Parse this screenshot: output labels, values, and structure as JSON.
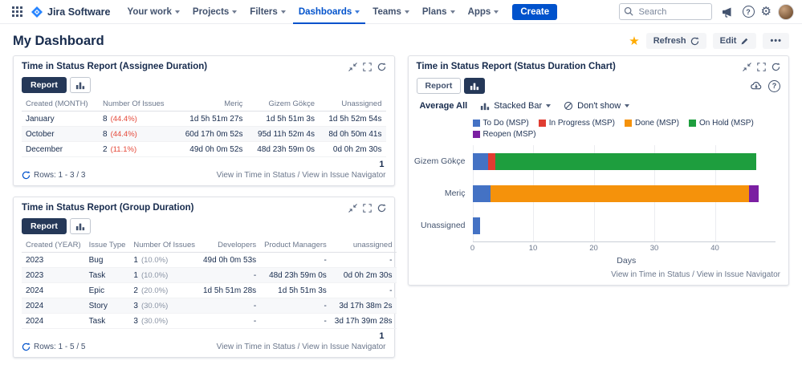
{
  "topnav": {
    "app_name": "Jira Software",
    "items": [
      "Your work",
      "Projects",
      "Filters",
      "Dashboards",
      "Teams",
      "Plans",
      "Apps"
    ],
    "active_item": "Dashboards",
    "create_label": "Create",
    "search_placeholder": "Search"
  },
  "header": {
    "title": "My Dashboard",
    "refresh_label": "Refresh",
    "edit_label": "Edit",
    "more_label": "•••"
  },
  "gadget_assignee": {
    "title": "Time in Status Report (Assignee Duration)",
    "report_label": "Report",
    "page": "1",
    "rows_info": "Rows: 1 - 3 / 3",
    "links": [
      "View in Time in Status",
      "View in Issue Navigator"
    ],
    "table": {
      "pct_color": "#E5493A",
      "columns": [
        {
          "label": "Created (MONTH)",
          "align": "left"
        },
        {
          "label": "Number Of Issues",
          "align": "left"
        },
        {
          "label": "Meriç",
          "align": "right"
        },
        {
          "label": "Gizem Gökçe",
          "align": "right"
        },
        {
          "label": "Unassigned",
          "align": "right"
        }
      ],
      "rows": [
        {
          "cells": [
            {
              "t": "January"
            },
            {
              "t": "8",
              "pct": "(44.4%)"
            },
            {
              "t": "1d 5h 51m 27s"
            },
            {
              "t": "1d 5h 51m 3s"
            },
            {
              "t": "1d 5h 52m 54s"
            }
          ]
        },
        {
          "cells": [
            {
              "t": "October"
            },
            {
              "t": "8",
              "pct": "(44.4%)"
            },
            {
              "t": "60d 17h 0m 52s"
            },
            {
              "t": "95d 11h 52m 4s"
            },
            {
              "t": "8d 0h 50m 41s"
            }
          ]
        },
        {
          "cells": [
            {
              "t": "December"
            },
            {
              "t": "2",
              "pct": "(11.1%)"
            },
            {
              "t": "49d 0h 0m 52s"
            },
            {
              "t": "48d 23h 59m 0s"
            },
            {
              "t": "0d 0h 2m 30s"
            }
          ]
        }
      ]
    }
  },
  "gadget_group": {
    "title": "Time in Status Report (Group Duration)",
    "report_label": "Report",
    "page": "1",
    "rows_info": "Rows: 1 - 5 / 5",
    "links": [
      "View in Time in Status",
      "View in Issue Navigator"
    ],
    "table": {
      "pct_color": "#8993A4",
      "columns": [
        {
          "label": "Created (YEAR)",
          "align": "left"
        },
        {
          "label": "Issue Type",
          "align": "left"
        },
        {
          "label": "Number Of Issues",
          "align": "left"
        },
        {
          "label": "Developers",
          "align": "right"
        },
        {
          "label": "Product Managers",
          "align": "right"
        },
        {
          "label": "unassigned",
          "align": "right"
        }
      ],
      "rows": [
        {
          "cells": [
            {
              "t": "2023"
            },
            {
              "t": "Bug"
            },
            {
              "t": "1",
              "pct": "(10.0%)"
            },
            {
              "t": "49d 0h 0m 53s"
            },
            {
              "t": "-"
            },
            {
              "t": "-"
            }
          ]
        },
        {
          "cells": [
            {
              "t": "2023"
            },
            {
              "t": "Task"
            },
            {
              "t": "1",
              "pct": "(10.0%)"
            },
            {
              "t": "-"
            },
            {
              "t": "48d 23h 59m 0s"
            },
            {
              "t": "0d 0h 2m 30s"
            }
          ]
        },
        {
          "cells": [
            {
              "t": "2024"
            },
            {
              "t": "Epic"
            },
            {
              "t": "2",
              "pct": "(20.0%)"
            },
            {
              "t": "1d 5h 51m 28s"
            },
            {
              "t": "1d 5h 51m 3s"
            },
            {
              "t": "-"
            }
          ]
        },
        {
          "cells": [
            {
              "t": "2024"
            },
            {
              "t": "Story"
            },
            {
              "t": "3",
              "pct": "(30.0%)"
            },
            {
              "t": "-"
            },
            {
              "t": "-"
            },
            {
              "t": "3d 17h 38m 2s"
            }
          ]
        },
        {
          "cells": [
            {
              "t": "2024"
            },
            {
              "t": "Task"
            },
            {
              "t": "3",
              "pct": "(30.0%)"
            },
            {
              "t": "-"
            },
            {
              "t": "-"
            },
            {
              "t": "3d 17h 39m 28s"
            }
          ]
        }
      ]
    }
  },
  "gadget_chart": {
    "title": "Time in Status Report (Status Duration Chart)",
    "report_label": "Report",
    "average_label": "Average All",
    "type_select_label": "Stacked Bar",
    "dont_show_label": "Don't show",
    "links": [
      "View in Time in Status",
      "View in Issue Navigator"
    ]
  },
  "chart_data": {
    "type": "bar",
    "orientation": "horizontal",
    "stacked": true,
    "title": "Time in Status Report (Status Duration Chart)",
    "categories": [
      "Gizem Gökçe",
      "Meriç",
      "Unassigned"
    ],
    "series": [
      {
        "name": "To Do (MSP)",
        "color": "#4472C4",
        "values": [
          2.6,
          3.0,
          1.3
        ]
      },
      {
        "name": "In Progress (MSP)",
        "color": "#E03C31",
        "values": [
          1.2,
          0,
          0
        ]
      },
      {
        "name": "Done (MSP)",
        "color": "#F5920B",
        "values": [
          0,
          42.6,
          0
        ]
      },
      {
        "name": "On Hold (MSP)",
        "color": "#1E9E3E",
        "values": [
          43.0,
          0,
          0
        ]
      },
      {
        "name": "Reopen (MSP)",
        "color": "#7B1FA2",
        "values": [
          0,
          1.6,
          0
        ]
      }
    ],
    "xlabel": "Days",
    "xlim": [
      0,
      50
    ],
    "xticks": [
      0,
      10,
      20,
      30,
      40
    ],
    "grid": true,
    "legend_position": "top"
  }
}
